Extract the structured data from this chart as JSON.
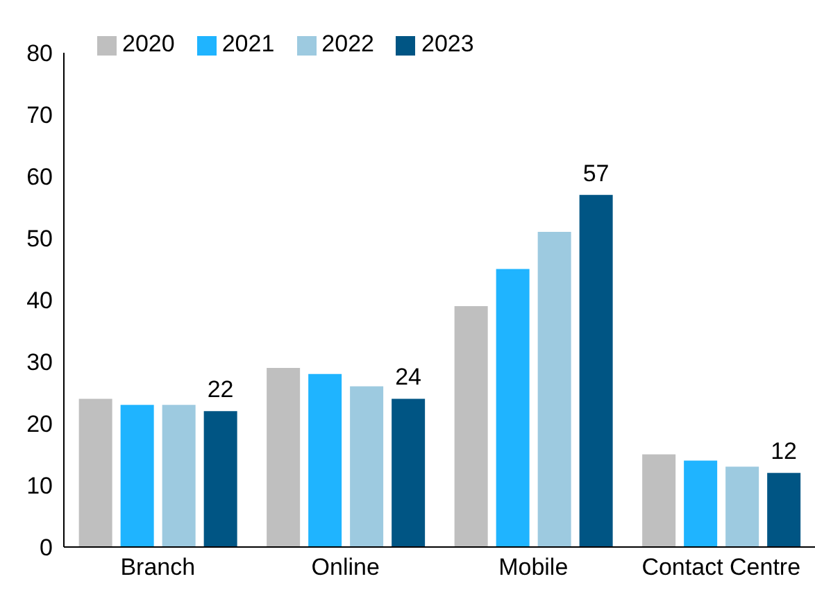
{
  "chart_data": {
    "type": "bar",
    "categories": [
      "Branch",
      "Online",
      "Mobile",
      "Contact Centre"
    ],
    "series": [
      {
        "name": "2020",
        "color": "#bfbfbf",
        "values": [
          24,
          29,
          39,
          15
        ]
      },
      {
        "name": "2021",
        "color": "#1fb4ff",
        "values": [
          23,
          28,
          45,
          14
        ]
      },
      {
        "name": "2022",
        "color": "#9dcae0",
        "values": [
          23,
          26,
          51,
          13
        ]
      },
      {
        "name": "2023",
        "color": "#005584",
        "values": [
          22,
          24,
          57,
          12
        ],
        "value_labels": [
          "22",
          "24",
          "57",
          "12"
        ]
      }
    ],
    "ylim": [
      0,
      80
    ],
    "yticks": [
      0,
      10,
      20,
      30,
      40,
      50,
      60,
      70,
      80
    ],
    "grid": false,
    "legend": "top left"
  }
}
